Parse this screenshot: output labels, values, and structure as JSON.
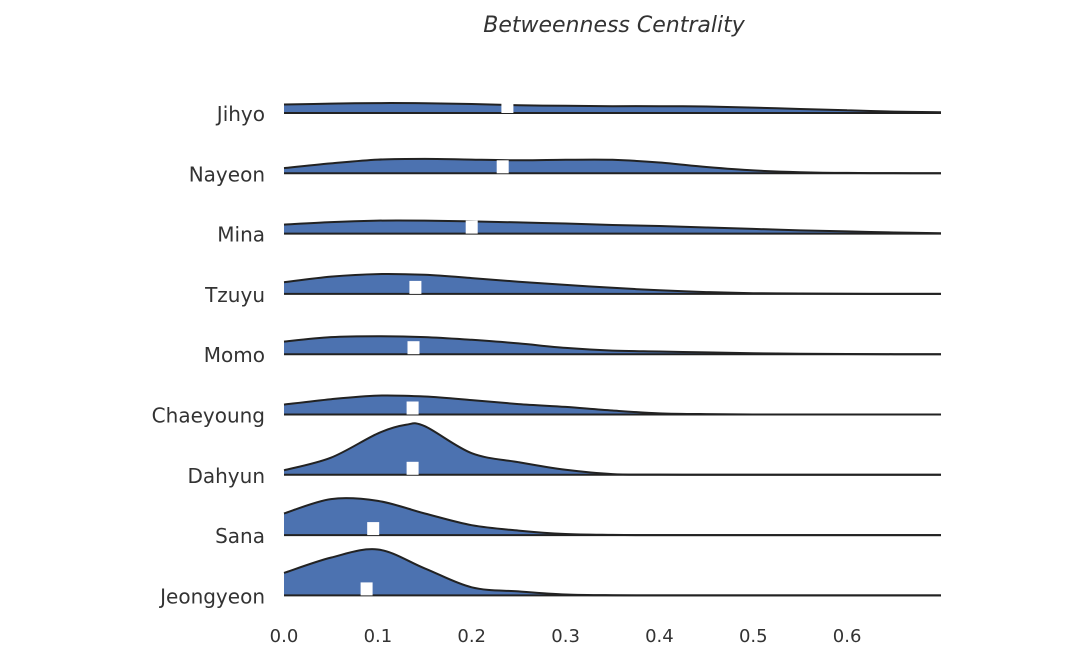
{
  "chart_data": {
    "type": "ridgeline",
    "title": "Betweenness Centrality",
    "xlabel": "",
    "ylabel": "",
    "xlim": [
      0.0,
      0.7
    ],
    "xticks": [
      "0.0",
      "0.1",
      "0.2",
      "0.3",
      "0.4",
      "0.5",
      "0.6"
    ],
    "xtick_values": [
      0.0,
      0.1,
      0.2,
      0.3,
      0.4,
      0.5,
      0.6
    ],
    "fill_color": "#4c72b0",
    "marker_color": "#ffffff",
    "grid": false,
    "marker_meaning": "median",
    "series": [
      {
        "label": "Jihyo",
        "median": 0.238,
        "density": [
          [
            0.0,
            0.47
          ],
          [
            0.05,
            0.52
          ],
          [
            0.1,
            0.55
          ],
          [
            0.15,
            0.54
          ],
          [
            0.2,
            0.5
          ],
          [
            0.25,
            0.43
          ],
          [
            0.3,
            0.4
          ],
          [
            0.35,
            0.38
          ],
          [
            0.4,
            0.38
          ],
          [
            0.45,
            0.36
          ],
          [
            0.5,
            0.3
          ],
          [
            0.55,
            0.22
          ],
          [
            0.6,
            0.15
          ],
          [
            0.65,
            0.08
          ],
          [
            0.7,
            0.04
          ]
        ]
      },
      {
        "label": "Nayeon",
        "median": 0.233,
        "density": [
          [
            0.0,
            0.29
          ],
          [
            0.05,
            0.55
          ],
          [
            0.1,
            0.76
          ],
          [
            0.15,
            0.8
          ],
          [
            0.2,
            0.76
          ],
          [
            0.25,
            0.72
          ],
          [
            0.3,
            0.75
          ],
          [
            0.35,
            0.75
          ],
          [
            0.4,
            0.6
          ],
          [
            0.45,
            0.35
          ],
          [
            0.5,
            0.16
          ],
          [
            0.55,
            0.06
          ],
          [
            0.6,
            0.02
          ],
          [
            0.65,
            0.01
          ],
          [
            0.7,
            0.0
          ]
        ]
      },
      {
        "label": "Mina",
        "median": 0.2,
        "density": [
          [
            0.0,
            0.5
          ],
          [
            0.05,
            0.64
          ],
          [
            0.1,
            0.72
          ],
          [
            0.15,
            0.72
          ],
          [
            0.2,
            0.68
          ],
          [
            0.25,
            0.62
          ],
          [
            0.3,
            0.56
          ],
          [
            0.35,
            0.48
          ],
          [
            0.4,
            0.42
          ],
          [
            0.45,
            0.34
          ],
          [
            0.5,
            0.26
          ],
          [
            0.55,
            0.18
          ],
          [
            0.6,
            0.12
          ],
          [
            0.65,
            0.06
          ],
          [
            0.7,
            0.02
          ]
        ]
      },
      {
        "label": "Tzuyu",
        "median": 0.14,
        "density": [
          [
            0.0,
            0.65
          ],
          [
            0.05,
            0.96
          ],
          [
            0.1,
            1.1
          ],
          [
            0.15,
            1.06
          ],
          [
            0.2,
            0.88
          ],
          [
            0.25,
            0.68
          ],
          [
            0.3,
            0.5
          ],
          [
            0.35,
            0.34
          ],
          [
            0.4,
            0.2
          ],
          [
            0.45,
            0.1
          ],
          [
            0.5,
            0.04
          ],
          [
            0.55,
            0.02
          ],
          [
            0.6,
            0.01
          ],
          [
            0.65,
            0.0
          ],
          [
            0.7,
            0.0
          ]
        ]
      },
      {
        "label": "Momo",
        "median": 0.138,
        "density": [
          [
            0.0,
            0.7
          ],
          [
            0.05,
            0.95
          ],
          [
            0.1,
            1.0
          ],
          [
            0.15,
            0.95
          ],
          [
            0.2,
            0.8
          ],
          [
            0.25,
            0.6
          ],
          [
            0.3,
            0.35
          ],
          [
            0.35,
            0.2
          ],
          [
            0.4,
            0.15
          ],
          [
            0.45,
            0.1
          ],
          [
            0.5,
            0.05
          ],
          [
            0.55,
            0.03
          ],
          [
            0.6,
            0.01
          ],
          [
            0.65,
            0.0
          ],
          [
            0.7,
            0.0
          ]
        ]
      },
      {
        "label": "Chaeyoung",
        "median": 0.137,
        "density": [
          [
            0.0,
            0.55
          ],
          [
            0.05,
            0.85
          ],
          [
            0.1,
            1.05
          ],
          [
            0.15,
            1.0
          ],
          [
            0.2,
            0.8
          ],
          [
            0.25,
            0.58
          ],
          [
            0.3,
            0.42
          ],
          [
            0.35,
            0.22
          ],
          [
            0.4,
            0.06
          ],
          [
            0.45,
            0.02
          ],
          [
            0.5,
            0.0
          ],
          [
            0.55,
            0.0
          ],
          [
            0.6,
            0.0
          ],
          [
            0.65,
            0.0
          ],
          [
            0.7,
            0.0
          ]
        ]
      },
      {
        "label": "Dahyun",
        "median": 0.137,
        "density": [
          [
            0.0,
            0.25
          ],
          [
            0.05,
            0.95
          ],
          [
            0.1,
            2.3
          ],
          [
            0.13,
            2.78
          ],
          [
            0.15,
            2.7
          ],
          [
            0.2,
            1.2
          ],
          [
            0.25,
            0.7
          ],
          [
            0.3,
            0.28
          ],
          [
            0.35,
            0.04
          ],
          [
            0.4,
            0.01
          ],
          [
            0.45,
            0.0
          ],
          [
            0.5,
            0.0
          ],
          [
            0.55,
            0.0
          ],
          [
            0.6,
            0.0
          ],
          [
            0.65,
            0.0
          ],
          [
            0.7,
            0.0
          ]
        ]
      },
      {
        "label": "Sana",
        "median": 0.095,
        "density": [
          [
            0.0,
            1.2
          ],
          [
            0.05,
            2.0
          ],
          [
            0.1,
            1.9
          ],
          [
            0.15,
            1.2
          ],
          [
            0.2,
            0.55
          ],
          [
            0.25,
            0.25
          ],
          [
            0.3,
            0.06
          ],
          [
            0.35,
            0.01
          ],
          [
            0.4,
            0.0
          ],
          [
            0.45,
            0.0
          ],
          [
            0.5,
            0.0
          ],
          [
            0.55,
            0.0
          ],
          [
            0.6,
            0.0
          ],
          [
            0.65,
            0.0
          ],
          [
            0.7,
            0.0
          ]
        ]
      },
      {
        "label": "Jeongyeon",
        "median": 0.088,
        "density": [
          [
            0.0,
            1.25
          ],
          [
            0.05,
            2.1
          ],
          [
            0.1,
            2.55
          ],
          [
            0.15,
            1.5
          ],
          [
            0.2,
            0.45
          ],
          [
            0.25,
            0.22
          ],
          [
            0.3,
            0.05
          ],
          [
            0.35,
            0.01
          ],
          [
            0.4,
            0.0
          ],
          [
            0.45,
            0.0
          ],
          [
            0.5,
            0.0
          ],
          [
            0.55,
            0.0
          ],
          [
            0.6,
            0.0
          ],
          [
            0.65,
            0.0
          ],
          [
            0.7,
            0.0
          ]
        ]
      }
    ]
  }
}
